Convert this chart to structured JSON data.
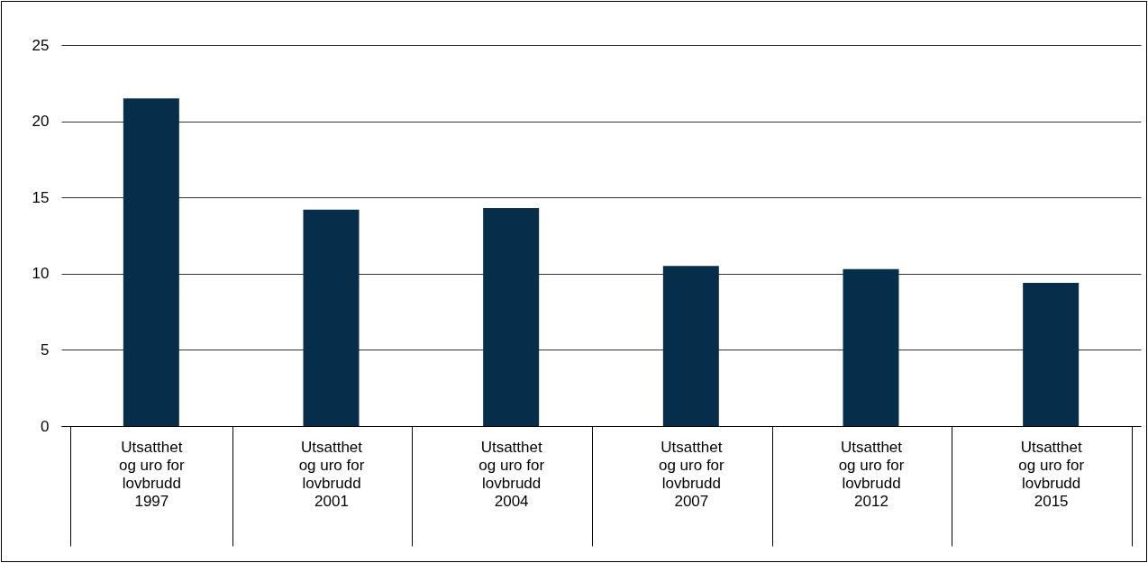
{
  "chart_data": {
    "type": "bar",
    "categories": [
      "1997",
      "2001",
      "2004",
      "2007",
      "2012",
      "2015"
    ],
    "series": [
      {
        "name": "Utsatthet og uro for lovbrudd",
        "color": "#062e4a",
        "values": [
          21.5,
          14.2,
          14.3,
          10.5,
          10.3,
          9.4
        ]
      }
    ],
    "ylim": [
      0,
      25
    ],
    "yticks": [
      0,
      5,
      10,
      15,
      20,
      25
    ],
    "grid": "y",
    "legend": false
  }
}
